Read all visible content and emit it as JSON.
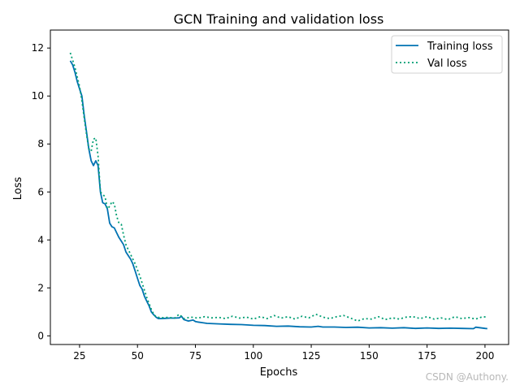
{
  "chart_data": {
    "type": "line",
    "title": "GCN Training and validation loss",
    "xlabel": "Epochs",
    "ylabel": "Loss",
    "xlim": [
      12.4,
      210.2
    ],
    "ylim": [
      -0.36,
      12.75
    ],
    "xticks": [
      25,
      50,
      75,
      100,
      125,
      150,
      175,
      200
    ],
    "yticks": [
      0,
      2,
      4,
      6,
      8,
      10,
      12
    ],
    "grid": false,
    "legend": "top-right",
    "series": [
      {
        "name": "Training loss",
        "color": "#0072b2",
        "style": "solid",
        "x": [
          21,
          22,
          23,
          24,
          25,
          26,
          27,
          28,
          29,
          30,
          31,
          32,
          33,
          34,
          35,
          36,
          37,
          38,
          39,
          40,
          41,
          42,
          43,
          44,
          45,
          46,
          47,
          48,
          49,
          50,
          51,
          52,
          53,
          54,
          55,
          56,
          57,
          58,
          59,
          60,
          62,
          64,
          66,
          68,
          69,
          70,
          72,
          74,
          75,
          76,
          78,
          80,
          85,
          90,
          95,
          100,
          105,
          110,
          115,
          120,
          125,
          128,
          130,
          135,
          140,
          145,
          150,
          155,
          160,
          165,
          170,
          175,
          180,
          185,
          190,
          195,
          196,
          200,
          201
        ],
        "y": [
          11.47,
          11.3,
          11.0,
          10.6,
          10.3,
          10.0,
          9.2,
          8.5,
          7.8,
          7.3,
          7.1,
          7.3,
          7.1,
          6.0,
          5.55,
          5.5,
          5.3,
          4.7,
          4.55,
          4.5,
          4.3,
          4.1,
          3.95,
          3.8,
          3.5,
          3.35,
          3.2,
          3.0,
          2.7,
          2.4,
          2.1,
          1.95,
          1.65,
          1.45,
          1.25,
          1.0,
          0.88,
          0.78,
          0.72,
          0.72,
          0.73,
          0.74,
          0.74,
          0.75,
          0.82,
          0.68,
          0.62,
          0.66,
          0.6,
          0.58,
          0.55,
          0.52,
          0.5,
          0.48,
          0.47,
          0.44,
          0.43,
          0.4,
          0.41,
          0.38,
          0.37,
          0.4,
          0.37,
          0.37,
          0.35,
          0.36,
          0.33,
          0.34,
          0.32,
          0.34,
          0.31,
          0.33,
          0.31,
          0.32,
          0.31,
          0.3,
          0.36,
          0.31,
          0.3
        ]
      },
      {
        "name": "Val loss",
        "color": "#009e73",
        "style": "dotted",
        "x": [
          21,
          22,
          23,
          24,
          25,
          26,
          27,
          28,
          29,
          30,
          31,
          32,
          33,
          34,
          35,
          36,
          37,
          38,
          39,
          40,
          41,
          42,
          43,
          44,
          45,
          46,
          47,
          48,
          49,
          50,
          51,
          52,
          53,
          54,
          55,
          56,
          57,
          58,
          60,
          63,
          66,
          68,
          70,
          73,
          76,
          79,
          82,
          85,
          88,
          91,
          94,
          97,
          100,
          103,
          106,
          109,
          112,
          115,
          118,
          121,
          124,
          127,
          130,
          133,
          136,
          139,
          142,
          145,
          148,
          151,
          154,
          157,
          160,
          163,
          166,
          169,
          172,
          175,
          178,
          181,
          184,
          187,
          190,
          193,
          196,
          199,
          201
        ],
        "y": [
          11.8,
          11.5,
          11.2,
          10.8,
          10.4,
          9.8,
          9.1,
          8.4,
          7.8,
          7.7,
          8.2,
          8.25,
          7.5,
          6.0,
          5.9,
          5.8,
          5.3,
          5.4,
          5.6,
          5.5,
          5.0,
          4.7,
          4.65,
          4.2,
          3.8,
          3.6,
          3.4,
          3.2,
          3.0,
          2.75,
          2.5,
          2.2,
          1.9,
          1.6,
          1.35,
          1.1,
          0.9,
          0.8,
          0.75,
          0.77,
          0.74,
          0.9,
          0.72,
          0.78,
          0.74,
          0.8,
          0.75,
          0.77,
          0.72,
          0.82,
          0.74,
          0.78,
          0.7,
          0.8,
          0.72,
          0.85,
          0.74,
          0.8,
          0.7,
          0.82,
          0.75,
          0.9,
          0.78,
          0.72,
          0.8,
          0.85,
          0.74,
          0.62,
          0.72,
          0.7,
          0.8,
          0.68,
          0.75,
          0.7,
          0.78,
          0.8,
          0.72,
          0.8,
          0.7,
          0.75,
          0.68,
          0.8,
          0.72,
          0.76,
          0.7,
          0.8,
          0.78
        ]
      }
    ]
  },
  "watermark": "CSDN @Authony."
}
